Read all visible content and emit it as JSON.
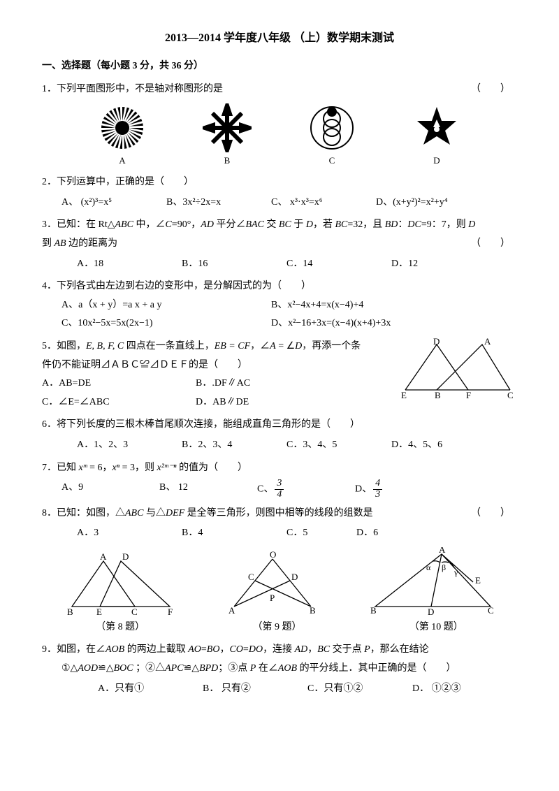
{
  "title": "2013—2014 学年度八年级 （上）数学期末测试",
  "section1": "一、选择题（每小题 3 分，共 36 分）",
  "q1": {
    "num": "1．",
    "text": "下列平面图形中，不是轴对称图形的是",
    "paren": "（　　）",
    "labels": {
      "a": "A",
      "b": "B",
      "c": "C",
      "d": "D"
    }
  },
  "q2": {
    "num": "2．",
    "text": "下列运算中，正确的是（　　）",
    "a": "A、 (x²)³=x⁵",
    "b": "B、3x²÷2x=x",
    "c": "C、 x³·x³=x⁶",
    "d": "D、(x+y²)²=x²+y⁴"
  },
  "q3": {
    "num": "3．",
    "text1": "已知：在 Rt△",
    "abc": "ABC",
    "text2": " 中，∠",
    "cc": "C",
    "text3": "=90°，",
    "ad": "AD",
    "text4": " 平分∠",
    "bac": "BAC",
    "text5": " 交 ",
    "bc": "BC",
    "text6": " 于 ",
    "dd": "D",
    "text7": "，若 ",
    "bc2": "BC",
    "text8": "=32，且 ",
    "bd": "BD",
    "text9": "：",
    "dc": "DC",
    "text10": "=9：7，则 ",
    "d2": "D",
    "line2a": "到 ",
    "ab": "AB",
    "line2b": " 边的距离为",
    "paren": "（　　）",
    "a": "A．18",
    "b": "B．16",
    "c": "C．14",
    "d": "D．12"
  },
  "q4": {
    "num": "4．",
    "text": "下列各式由左边到右边的变形中，是分解因式的为（　　）",
    "a": "A、a（x + y）=a x + a y",
    "b": "B、x²−4x+4=x(x−4)+4",
    "c": "C、10x²−5x=5x(2x−1)",
    "d": "D、x²−16+3x=(x−4)(x+4)+3x"
  },
  "q5": {
    "num": "5．",
    "text1": "如图，",
    "pts": "E, B, F, C",
    "text2": " 四点在一条直线上，",
    "eq1": "EB = CF",
    "text3": "，∠",
    "aa": "A",
    "text4": " = ∠",
    "dd": "D",
    "text5": "，再添一个条",
    "line2": "件仍不能证明⊿ＡＢＣ≌⊿ＤＥＦ的是（　　）",
    "a": "A．AB=DE",
    "b": "B．.DF∥AC",
    "c": "C．∠E=∠ABC",
    "d": "D．AB∥DE",
    "fig": {
      "E": "E",
      "B": "B",
      "F": "F",
      "C": "C",
      "D": "D",
      "A": "A"
    }
  },
  "q6": {
    "num": "6．",
    "text": "将下列长度的三根木棒首尾顺次连接，能组成直角三角形的是（　　）",
    "a": "A．1、2、3",
    "b": "B．2、3、4",
    "c": "C．3、4、5",
    "d": "D．4、5、6"
  },
  "q7": {
    "num": "7．",
    "t1": "已知 ",
    "xm": "xᵐ",
    "t2": " = 6，",
    "xn": "xⁿ",
    "t3": " = 3，则 ",
    "x2mn": "x²ᵐ⁻ⁿ",
    "t4": " 的值为（　　）",
    "a": "A、9",
    "b": "B、 12",
    "c": "C、",
    "d": "D、",
    "frac_c": {
      "n": "3",
      "d": "4"
    },
    "frac_d": {
      "n": "4",
      "d": "3"
    }
  },
  "q8": {
    "num": "8．",
    "t1": "已知：如图，△",
    "abc": "ABC",
    "t2": " 与△",
    "def": "DEF",
    "t3": " 是全等三角形，则图中相等的线段的组数是",
    "paren": "（　　）",
    "a": "A．3",
    "b": "B．4",
    "c": "C．5",
    "d": "D．6",
    "cap": "（第 8 题）",
    "fig": {
      "A": "A",
      "B": "B",
      "C": "C",
      "D": "D",
      "E": "E",
      "F": "F"
    }
  },
  "q9cap": "（第 9 题）",
  "q10cap": "（第 10 题）",
  "fig9": {
    "O": "O",
    "A": "A",
    "B": "B",
    "C": "C",
    "D": "D",
    "P": "P"
  },
  "fig10": {
    "A": "A",
    "B": "B",
    "C": "C",
    "D": "D",
    "E": "E",
    "alpha": "α",
    "beta": "β",
    "gamma": "γ"
  },
  "q9": {
    "num": "9．",
    "t1": "如图，在∠",
    "aob": "AOB",
    "t2": " 的两边上截取 ",
    "ao": "AO",
    "t3": "=",
    "bo": "BO",
    "t4": "，",
    "co": "CO",
    "t5": "=",
    "do": "DO",
    "t6": "，连接 ",
    "ad": "AD",
    "t7": "，",
    "bc": "BC",
    "t8": " 交于点 ",
    "pp": "P",
    "t9": "，那么在结论",
    "line2a": "①△",
    "aod": "AOD",
    "line2b": "≌△",
    "boc": "BOC",
    "line2c": " ；②△",
    "apc": "APC",
    "line2d": "≌△",
    "bpd": "BPD",
    "line2e": "；③点 ",
    "p2": "P",
    "line2f": " 在∠",
    "aob2": "AOB",
    "line2g": " 的平分线上．其中正确的是（　　）",
    "a": "A．只有①",
    "b": "B． 只有②",
    "c": "C．只有①②",
    "d": "D． ①②③"
  }
}
